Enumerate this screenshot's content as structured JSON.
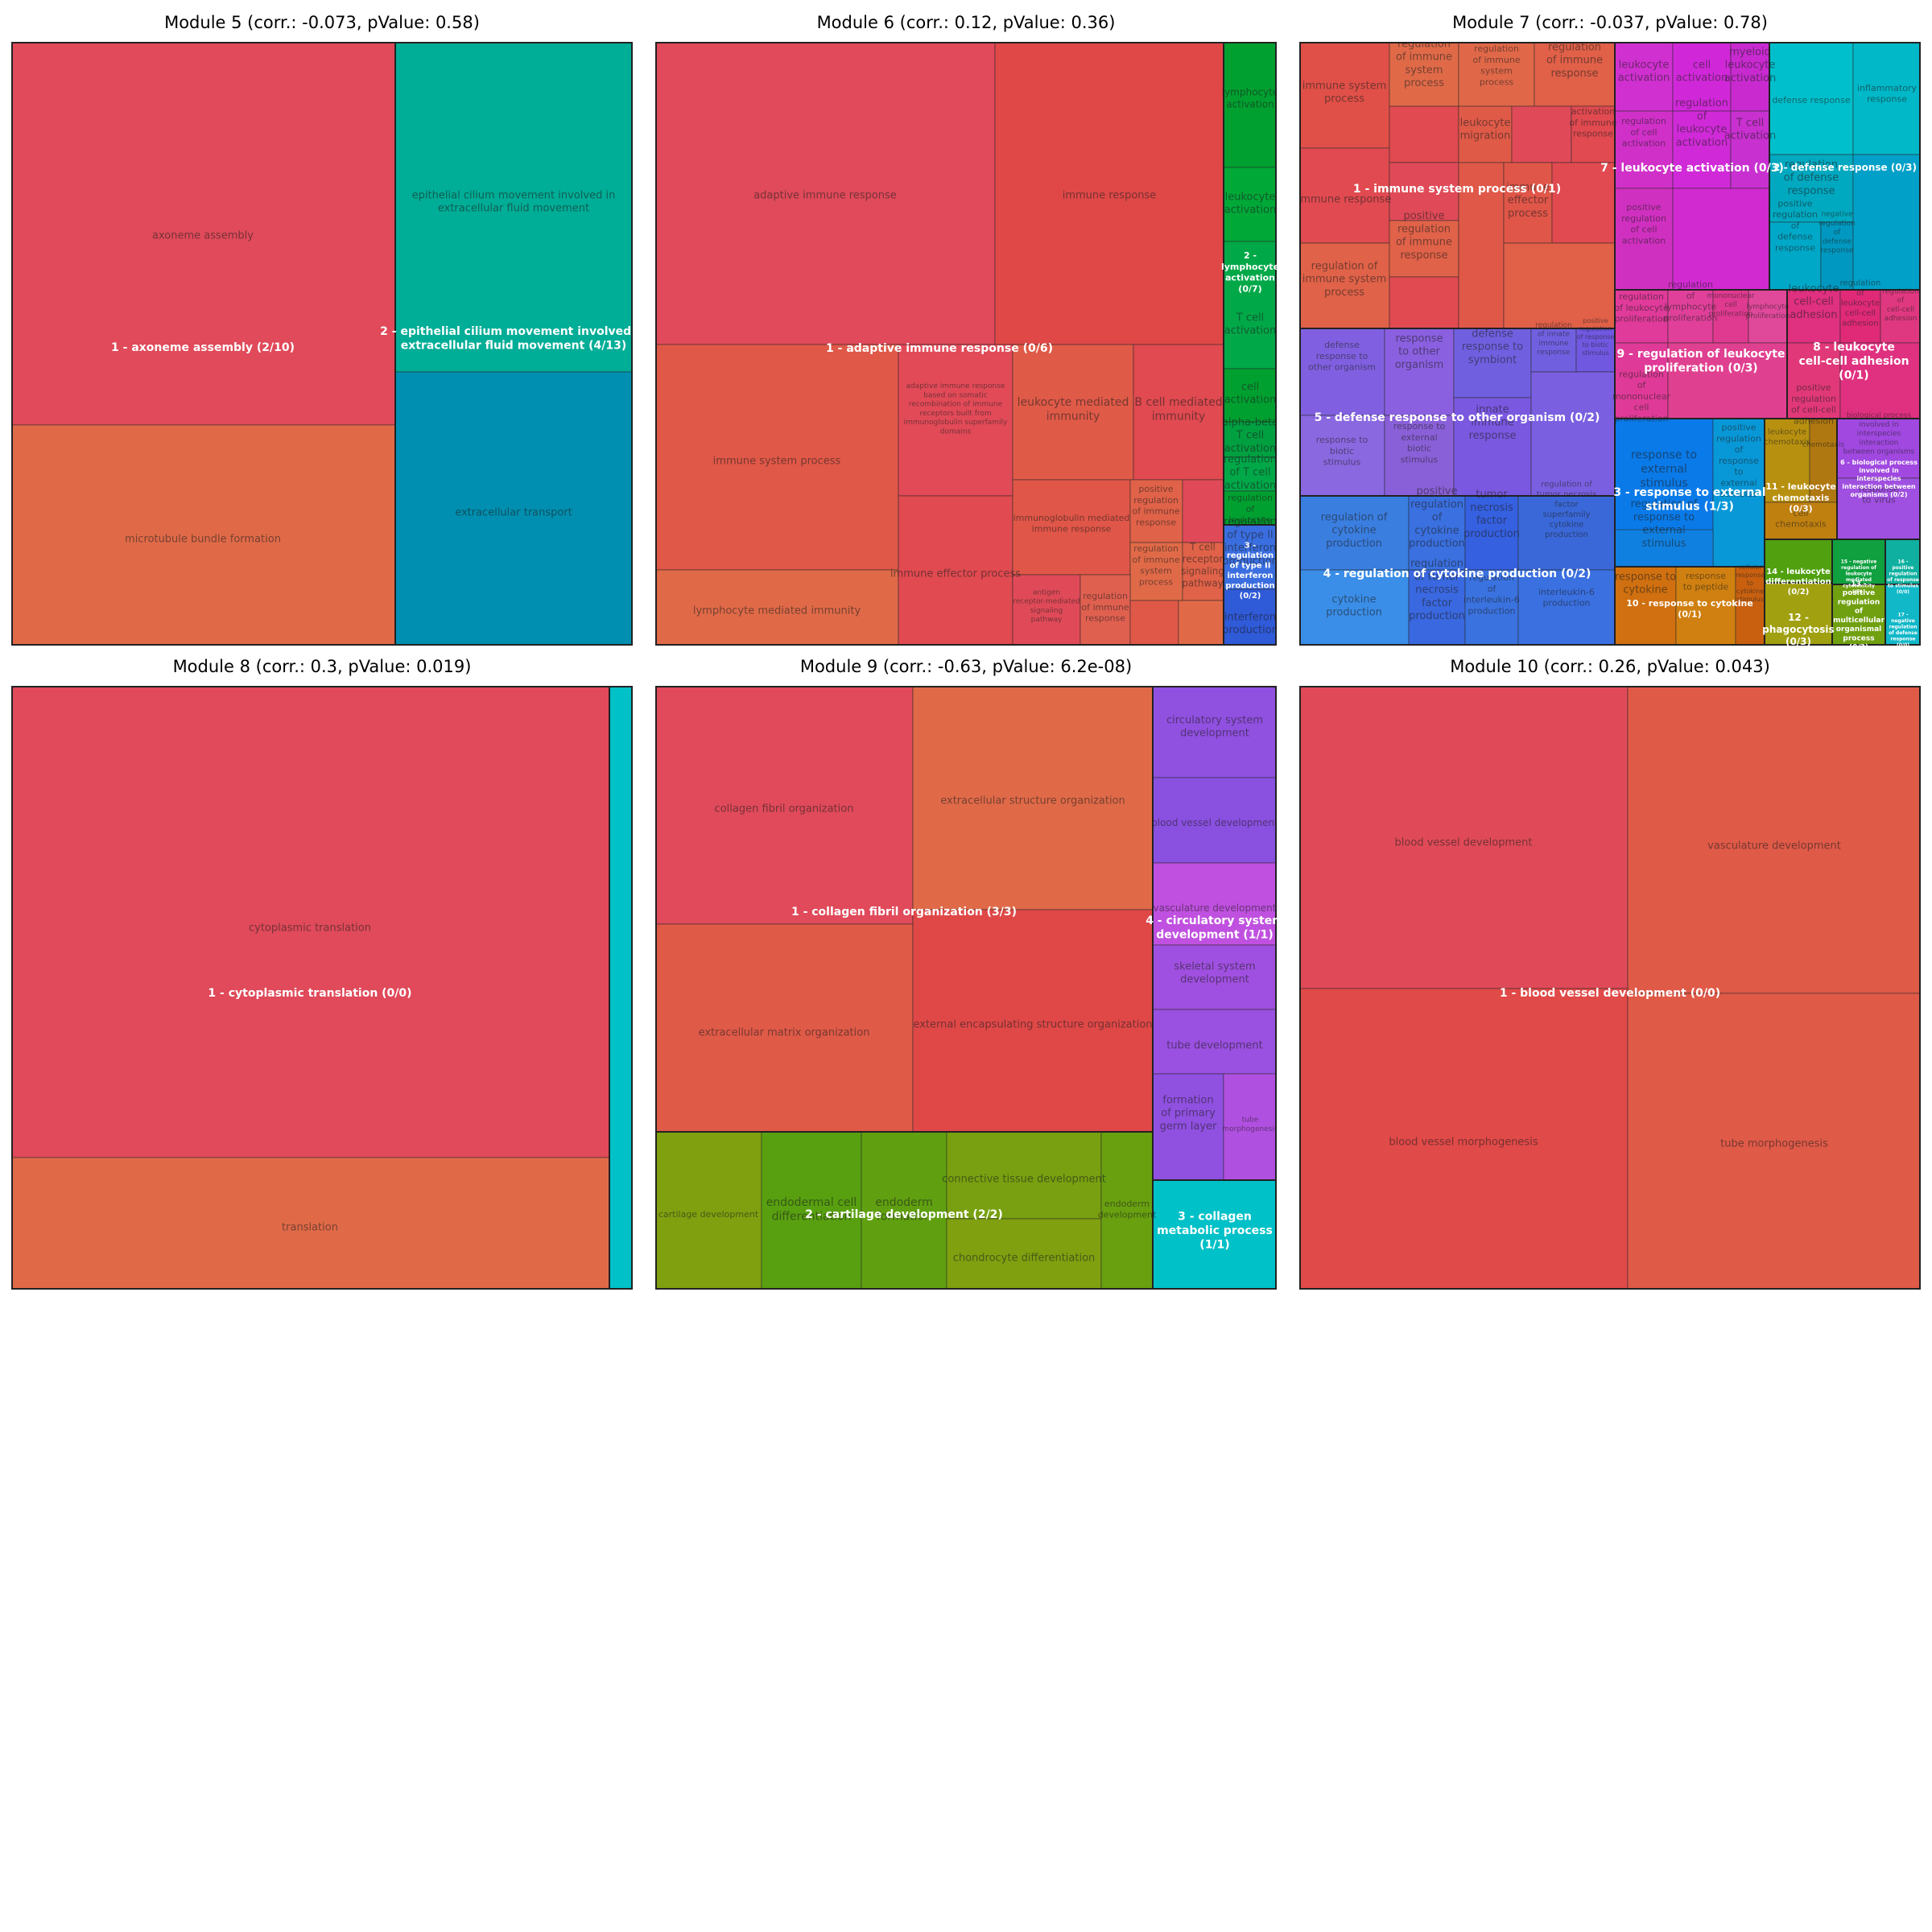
{
  "chart_data": [
    {
      "type": "treemap",
      "title": "Module 5 (corr.: -0.073, pValue: 0.58)",
      "groups": [
        {
          "label": "1 - axoneme assembly (2/10)",
          "color": "#e04a5a",
          "cells": [
            {
              "label": "axoneme assembly",
              "color": "#e04a5a"
            },
            {
              "label": "microtubule bundle formation",
              "color": "#e06a48"
            }
          ]
        },
        {
          "label": "2 - epithelial cilium movement involved in extracellular fluid movement (4/13)",
          "color": "#00a896",
          "cells": [
            {
              "label": "epithelial cilium movement involved in extracellular fluid movement",
              "color": "#00ad96"
            },
            {
              "label": "extracellular transport",
              "color": "#008fb0"
            }
          ]
        }
      ]
    },
    {
      "type": "treemap",
      "title": "Module 6 (corr.: 0.12, pValue: 0.36)",
      "groups": [
        {
          "label": "1 - adaptive immune response (0/6)",
          "color": "#e04a5a",
          "cells": [
            {
              "label": "adaptive immune response",
              "color": "#e04a5a"
            },
            {
              "label": "immune response",
              "color": "#e04848"
            },
            {
              "label": "immune system process",
              "color": "#e05848"
            },
            {
              "label": "lymphocyte mediated immunity",
              "color": "#e06a48"
            },
            {
              "label": "adaptive immune response based on somatic recombination of immune receptors built from immunoglobulin superfamily domains",
              "color": "#e24a58"
            },
            {
              "label": "immune effector process",
              "color": "#e04a50"
            },
            {
              "label": "leukocyte mediated immunity",
              "color": "#e05a48"
            },
            {
              "label": "B cell mediated immunity",
              "color": "#e04a50"
            },
            {
              "label": "immunoglobulin mediated immune response",
              "color": "#e05648"
            },
            {
              "label": "positive regulation of immune response",
              "color": "#e06248"
            },
            {
              "label": "antigen receptor-mediated signaling pathway",
              "color": "#e04a58"
            },
            {
              "label": "regulation of immune response",
              "color": "#e06050"
            },
            {
              "label": "regulation of immune system process",
              "color": "#e06a48"
            },
            {
              "label": "T cell receptor signaling pathway",
              "color": "#e06248"
            }
          ]
        },
        {
          "label": "2 - lymphocyte activation (0/7)",
          "color": "#00a030",
          "cells": [
            {
              "label": "lymphocyte activation",
              "color": "#00a030"
            },
            {
              "label": "leukocyte activation",
              "color": "#00a838"
            },
            {
              "label": "T cell activation",
              "color": "#00a848"
            },
            {
              "label": "cell activation",
              "color": "#00a030"
            },
            {
              "label": "alpha-beta T cell activation",
              "color": "#00a040"
            },
            {
              "label": "regulation of T cell activation",
              "color": "#00a848"
            },
            {
              "label": "regulation of leukocyte",
              "color": "#00a030"
            }
          ]
        },
        {
          "label": "3 - regulation of type II interferon production (0/2)",
          "color": "#3060d8",
          "cells": [
            {
              "label": "regulation of type II interferon production",
              "color": "#3a6ee0"
            },
            {
              "label": "interferon production",
              "color": "#2f5ad8"
            }
          ]
        }
      ]
    },
    {
      "type": "treemap",
      "title": "Module 7 (corr.: -0.037, pValue: 0.78)",
      "groups": [
        {
          "label": "1 - immune system process (0/1)",
          "color": "#e04a48",
          "cells": [
            {
              "label": "immune system process",
              "color": "#e05048"
            },
            {
              "label": "immune response",
              "color": "#e04a50"
            },
            {
              "label": "regulation of immune system process",
              "color": "#e06248"
            },
            {
              "label": "negative regulation of immune system process",
              "color": "#e06a48"
            },
            {
              "label": "positive regulation of immune system process",
              "color": "#e06848"
            },
            {
              "label": "regulation of immune response",
              "color": "#e06048"
            },
            {
              "label": "leukocyte migration",
              "color": "#e05a48"
            },
            {
              "label": "activation of immune response",
              "color": "#e04a50"
            },
            {
              "label": "positive regulation of immune response",
              "color": "#e06248"
            },
            {
              "label": "immune effector process",
              "color": "#e05648"
            }
          ]
        },
        {
          "label": "7 - leukocyte activation (0/3)",
          "color": "#d02ad0",
          "cells": [
            {
              "label": "leukocyte activation",
              "color": "#d030d0"
            },
            {
              "label": "cell activation",
              "color": "#d028d8"
            },
            {
              "label": "myeloid leukocyte activation",
              "color": "#c82ad0"
            },
            {
              "label": "regulation of cell activation",
              "color": "#d030c8"
            },
            {
              "label": "regulation of leukocyte activation",
              "color": "#d02ad8"
            },
            {
              "label": "T cell activation",
              "color": "#c830d0"
            },
            {
              "label": "positive regulation of cell activation",
              "color": "#d030c0"
            }
          ]
        },
        {
          "label": "2 - defense response (0/3)",
          "color": "#00b8c8",
          "cells": [
            {
              "label": "defense response",
              "color": "#00bfcc"
            },
            {
              "label": "inflammatory response",
              "color": "#00b8c8"
            },
            {
              "label": "regulation of defense response",
              "color": "#00a8c0"
            },
            {
              "label": "positive regulation of defense response",
              "color": "#00a8c8"
            },
            {
              "label": "negative regulation of defense response",
              "color": "#0098c0"
            }
          ]
        },
        {
          "label": "5 - defense response to other organism (0/2)",
          "color": "#8060e0",
          "cells": [
            {
              "label": "defense response to other organism",
              "color": "#8060e0"
            },
            {
              "label": "response to other organism",
              "color": "#8a60e0"
            },
            {
              "label": "defense response to symbiont",
              "color": "#7060e0"
            },
            {
              "label": "response to biotic stimulus",
              "color": "#8a68e0"
            },
            {
              "label": "response to external biotic stimulus",
              "color": "#8a60d8"
            },
            {
              "label": "innate immune response",
              "color": "#7a58e0"
            },
            {
              "label": "regulation of innate immune response",
              "color": "#7060e0"
            },
            {
              "label": "positive regulation of response to biotic stimulus",
              "color": "#7058e0"
            }
          ]
        },
        {
          "label": "9 - regulation of leukocyte proliferation (0/3)",
          "color": "#e03a9a",
          "cells": [
            {
              "label": "regulation of leukocyte proliferation",
              "color": "#e03a9a"
            },
            {
              "label": "regulation of lymphocyte proliferation",
              "color": "#e0409a"
            },
            {
              "label": "mononuclear cell proliferation",
              "color": "#e03a90"
            },
            {
              "label": "lymphocyte proliferation",
              "color": "#e0489a"
            },
            {
              "label": "regulation of mononuclear cell proliferation",
              "color": "#e03a98"
            },
            {
              "label": "positive regulation of leukocyte",
              "color": "#e04090"
            }
          ]
        },
        {
          "label": "8 - leukocyte cell-cell adhesion (0/1)",
          "color": "#e02a78",
          "cells": [
            {
              "label": "leukocyte cell-cell adhesion",
              "color": "#e03080"
            },
            {
              "label": "regulation of leukocyte cell-cell adhesion",
              "color": "#e02a78"
            },
            {
              "label": "regulation of cell-cell adhesion",
              "color": "#e03880"
            },
            {
              "label": "positive regulation of cell-cell adhesion",
              "color": "#e03878"
            },
            {
              "label": "cell-cell adhesion",
              "color": "#e03080"
            }
          ]
        },
        {
          "label": "4 - regulation of cytokine production (0/2)",
          "color": "#2f6fe0",
          "cells": [
            {
              "label": "regulation of cytokine production",
              "color": "#3a7ee0"
            },
            {
              "label": "positive regulation of cytokine production",
              "color": "#3a70e0"
            },
            {
              "label": "cytokine production",
              "color": "#3a8ee8"
            },
            {
              "label": "regulation of tumor necrosis factor production",
              "color": "#3a68e0"
            },
            {
              "label": "tumor necrosis factor production",
              "color": "#3560e0"
            },
            {
              "label": "interleukin-6 production",
              "color": "#3a70e0"
            },
            {
              "label": "regulation of interleukin-6 production",
              "color": "#3a72e0"
            },
            {
              "label": "regulation of tumor necrosis factor superfamily cytokine production",
              "color": "#3a68d8"
            }
          ]
        },
        {
          "label": "3 - response to external stimulus (1/3)",
          "color": "#0a7ae0",
          "cells": [
            {
              "label": "response to external stimulus",
              "color": "#0a7ae8"
            },
            {
              "label": "regulation of response to external stimulus",
              "color": "#1080e0"
            },
            {
              "label": "positive regulation of response to external stimulus",
              "color": "#0898d8"
            }
          ]
        },
        {
          "label": "10 - response to cytokine (0/1)",
          "color": "#d06a10",
          "cells": [
            {
              "label": "response to cytokine",
              "color": "#d07010"
            },
            {
              "label": "response to peptide",
              "color": "#d08010"
            },
            {
              "label": "cellular response to cytokine stimulus",
              "color": "#c86010"
            }
          ]
        },
        {
          "label": "11 - leukocyte chemotaxis (0/3)",
          "color": "#b89010",
          "cells": [
            {
              "label": "leukocyte chemotaxis",
              "color": "#b89010"
            },
            {
              "label": "chemotaxis",
              "color": "#b07810"
            },
            {
              "label": "cell chemotaxis",
              "color": "#c08010"
            }
          ]
        },
        {
          "label": "6 - biological process involved in interspecies interaction between organisms (0/2)",
          "color": "#a048e0",
          "cells": [
            {
              "label": "biological process involved in interspecies interaction between organisms",
              "color": "#a048e0"
            },
            {
              "label": "response to virus",
              "color": "#a050e0"
            }
          ]
        },
        {
          "label": "14 - leukocyte differentiation (0/2)",
          "color": "#50a010",
          "cells": [
            {
              "label": "leukocyte differentiation",
              "color": "#50a010"
            }
          ]
        },
        {
          "label": "12 - phagocytosis (0/3)",
          "color": "#a0a010",
          "cells": [
            {
              "label": "phagocytosis",
              "color": "#a0a010"
            }
          ]
        },
        {
          "label": "15 - negative regulation of leukocyte mediated cytotoxicity (0/1)",
          "color": "#10a040",
          "cells": [
            {
              "label": "negative regulation of leukocyte mediated cytotoxicity",
              "color": "#10a040"
            }
          ]
        },
        {
          "label": "16 - positive regulation of response to stimulus (0/0)",
          "color": "#10b0a0",
          "cells": [
            {
              "label": "positive regulation of response to stimulus",
              "color": "#10b0a0"
            }
          ]
        },
        {
          "label": "13 - positive regulation of multicellular organismal process (0/2)",
          "color": "#70a010",
          "cells": [
            {
              "label": "positive regulation of multicellular organismal process",
              "color": "#70a010"
            }
          ]
        },
        {
          "label": "17 - negative regulation of defense response (0/0)",
          "color": "#10b8c8",
          "cells": [
            {
              "label": "negative regulation of defense response",
              "color": "#10b8c8"
            }
          ]
        }
      ]
    },
    {
      "type": "treemap",
      "title": "Module 8 (corr.: 0.3, pValue: 0.019)",
      "groups": [
        {
          "label": "1 - cytoplasmic translation (0/0)",
          "color": "#e04a5a",
          "cells": [
            {
              "label": "cytoplasmic translation",
              "color": "#e04a5a"
            },
            {
              "label": "translation",
              "color": "#e06a48"
            }
          ]
        },
        {
          "label": "",
          "color": "#00c0c8",
          "cells": [
            {
              "label": "",
              "color": "#00c0c8"
            }
          ]
        }
      ]
    },
    {
      "type": "treemap",
      "title": "Module 9 (corr.: -0.63, pValue: 6.2e-08)",
      "groups": [
        {
          "label": "1 - collagen fibril organization (3/3)",
          "color": "#e04a5a",
          "cells": [
            {
              "label": "collagen fibril organization",
              "color": "#e04a5a"
            },
            {
              "label": "extracellular structure organization",
              "color": "#e06a48"
            },
            {
              "label": "extracellular matrix organization",
              "color": "#e05a48"
            },
            {
              "label": "external encapsulating structure organization",
              "color": "#e04848"
            }
          ]
        },
        {
          "label": "2 - cartilage development (2/2)",
          "color": "#70a010",
          "cells": [
            {
              "label": "cartilage development",
              "color": "#80a010"
            },
            {
              "label": "endodermal cell differentiation",
              "color": "#58a010"
            },
            {
              "label": "endoderm formation",
              "color": "#60a010"
            },
            {
              "label": "connective tissue development",
              "color": "#78a010"
            },
            {
              "label": "chondrocyte differentiation",
              "color": "#80a010"
            },
            {
              "label": "endoderm development",
              "color": "#68a010"
            }
          ]
        },
        {
          "label": "4 - circulatory system development (1/1)",
          "color": "#9050e0",
          "cells": [
            {
              "label": "circulatory system development",
              "color": "#9050e0"
            },
            {
              "label": "blood vessel development",
              "color": "#8a50e0"
            },
            {
              "label": "vasculature development",
              "color": "#c050e0"
            },
            {
              "label": "skeletal system development",
              "color": "#a050e0"
            },
            {
              "label": "tube development",
              "color": "#9a50e0"
            },
            {
              "label": "formation of primary germ layer",
              "color": "#9050e0"
            },
            {
              "label": "tube morphogenesis",
              "color": "#b050e0"
            }
          ]
        },
        {
          "label": "3 - collagen metabolic process (1/1)",
          "color": "#00c0c8",
          "cells": [
            {
              "label": "",
              "color": "#00c0c8"
            }
          ]
        }
      ]
    },
    {
      "type": "treemap",
      "title": "Module 10 (corr.: 0.26, pValue: 0.043)",
      "groups": [
        {
          "label": "1 - blood vessel development (0/0)",
          "color": "#e04a48",
          "cells": [
            {
              "label": "blood vessel development",
              "color": "#e04a58"
            },
            {
              "label": "vasculature development",
              "color": "#e05a48"
            },
            {
              "label": "blood vessel morphogenesis",
              "color": "#e04a48"
            },
            {
              "label": "tube morphogenesis",
              "color": "#e05a48"
            }
          ]
        }
      ]
    }
  ]
}
